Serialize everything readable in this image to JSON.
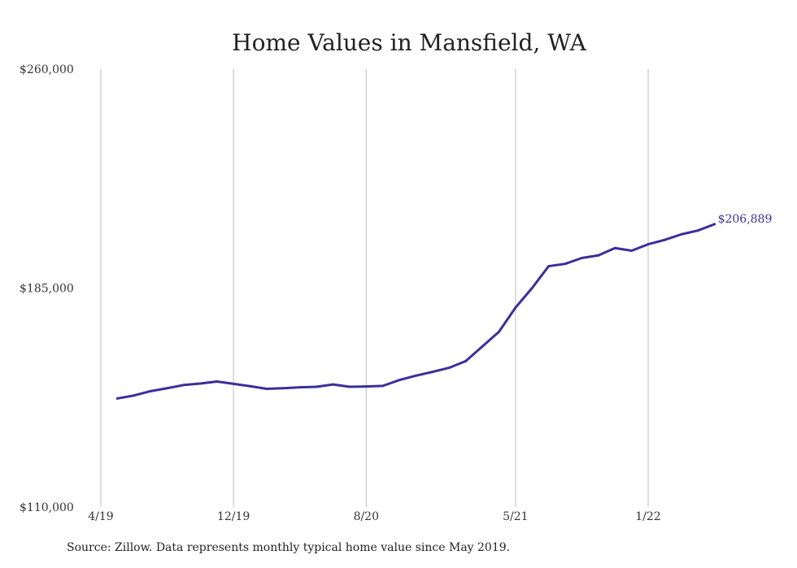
{
  "chart_data": {
    "type": "line",
    "title": "Home Values in Mansfield, WA",
    "xlabel": "",
    "ylabel": "",
    "ylim": [
      110000,
      260000
    ],
    "y_ticks": [
      "$260,000",
      "$185,000",
      "$110,000"
    ],
    "y_tick_values": [
      260000,
      185000,
      110000
    ],
    "x_range": [
      "2019-04",
      "2022-08"
    ],
    "x_ticks": [
      "4/19",
      "12/19",
      "8/20",
      "5/21",
      "1/22"
    ],
    "x_tick_dates": [
      "2019-04",
      "2019-12",
      "2020-08",
      "2021-05",
      "2022-01"
    ],
    "grid": "vertical",
    "series": [
      {
        "color": "#3b2f9a",
        "x": [
          "2019-05",
          "2019-06",
          "2019-07",
          "2019-08",
          "2019-09",
          "2019-10",
          "2019-11",
          "2019-12",
          "2020-01",
          "2020-02",
          "2020-03",
          "2020-04",
          "2020-05",
          "2020-06",
          "2020-07",
          "2020-08",
          "2020-09",
          "2020-10",
          "2020-11",
          "2020-12",
          "2021-01",
          "2021-02",
          "2021-03",
          "2021-04",
          "2021-05",
          "2021-06",
          "2021-07",
          "2021-08",
          "2021-09",
          "2021-10",
          "2021-11",
          "2021-12",
          "2022-01",
          "2022-02",
          "2022-03",
          "2022-04",
          "2022-05"
        ],
        "values": [
          147200,
          148200,
          149700,
          150700,
          151800,
          152300,
          153000,
          152200,
          151400,
          150500,
          150700,
          151000,
          151200,
          152000,
          151200,
          151300,
          151500,
          153500,
          155000,
          156300,
          157700,
          160000,
          165000,
          170000,
          178300,
          185000,
          192500,
          193300,
          195300,
          196200,
          198700,
          197800,
          200000,
          201500,
          203400,
          204700,
          206889
        ]
      }
    ],
    "annotations": [
      {
        "text": "$206,889",
        "attach": "last-point"
      }
    ]
  },
  "footer": {
    "source": "Source: Zillow. Data represents monthly typical home value since May 2019."
  }
}
